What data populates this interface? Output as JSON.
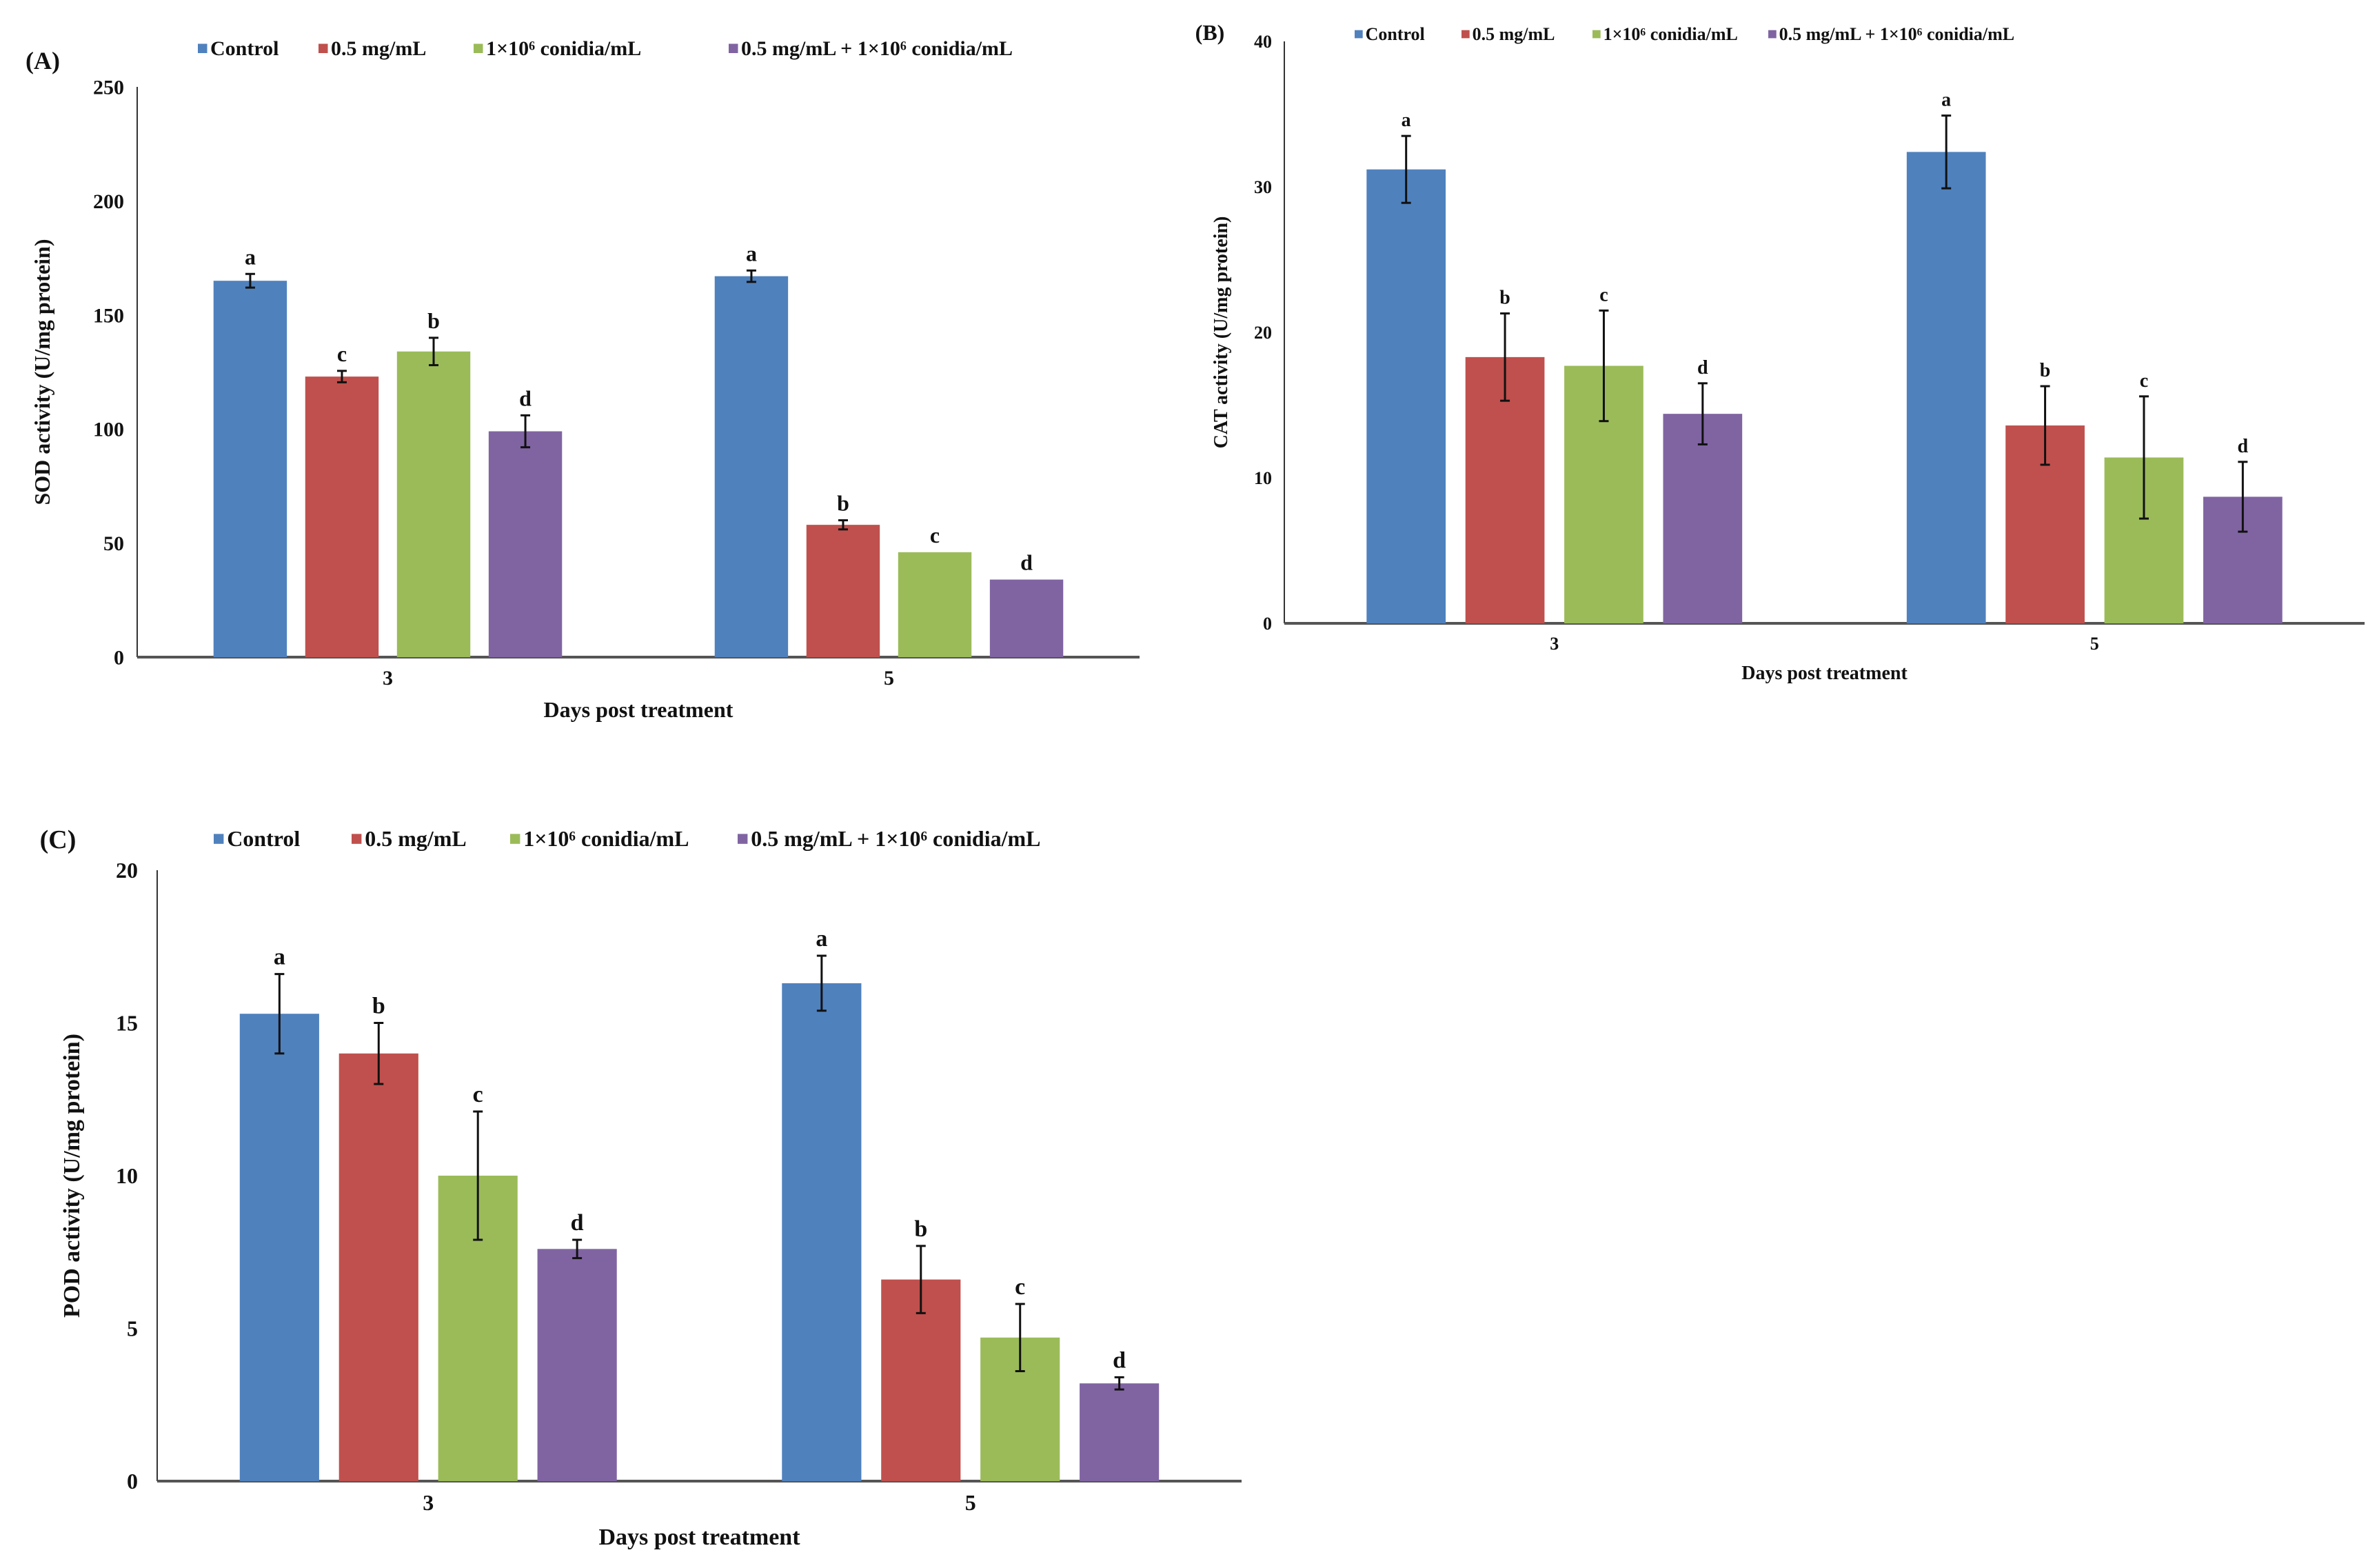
{
  "colors": {
    "Control": "#4f81bd",
    "0.5 mg/mL": "#c0504d",
    "1×10⁶ conidia/mL": "#9bbb59",
    "0.5 mg/mL + 1×10⁶ conidia/mL": "#8064a2"
  },
  "chart_data": [
    {
      "panel": "(A)",
      "type": "bar",
      "xlabel": "Days post treatment",
      "ylabel": "SOD activity (U/mg protein)",
      "ylim": [
        0,
        250
      ],
      "yticks": [
        0,
        50,
        100,
        150,
        200,
        250
      ],
      "categories": [
        "3",
        "5"
      ],
      "legend_position": "top",
      "series": [
        {
          "name": "Control",
          "values": [
            165,
            167
          ],
          "errors": [
            3,
            2.5
          ],
          "letters": [
            "a",
            "a"
          ]
        },
        {
          "name": "0.5 mg/mL",
          "values": [
            123,
            58
          ],
          "errors": [
            2.5,
            2
          ],
          "letters": [
            "c",
            "b"
          ]
        },
        {
          "name": "1×10⁶ conidia/mL",
          "values": [
            134,
            46
          ],
          "errors": [
            6,
            0
          ],
          "letters": [
            "b",
            "c"
          ]
        },
        {
          "name": "0.5 mg/mL + 1×10⁶ conidia/mL",
          "values": [
            99,
            34
          ],
          "errors": [
            7,
            0
          ],
          "letters": [
            "d",
            "d"
          ]
        }
      ]
    },
    {
      "panel": "(B)",
      "type": "bar",
      "xlabel": "Days post treatment",
      "ylabel": "CAT activity (U/mg protein)",
      "ylim": [
        0,
        40
      ],
      "yticks": [
        0,
        10,
        20,
        30,
        40
      ],
      "categories": [
        "3",
        "5"
      ],
      "legend_position": "top",
      "series": [
        {
          "name": "Control",
          "values": [
            31.2,
            32.4
          ],
          "errors": [
            2.3,
            2.5
          ],
          "letters": [
            "a",
            "a"
          ]
        },
        {
          "name": "0.5 mg/mL",
          "values": [
            18.3,
            13.6
          ],
          "errors": [
            3.0,
            2.7
          ],
          "letters": [
            "b",
            "b"
          ]
        },
        {
          "name": "1×10⁶ conidia/mL",
          "values": [
            17.7,
            11.4
          ],
          "errors": [
            3.8,
            4.2
          ],
          "letters": [
            "c",
            "c"
          ]
        },
        {
          "name": "0.5 mg/mL + 1×10⁶ conidia/mL",
          "values": [
            14.4,
            8.7
          ],
          "errors": [
            2.1,
            2.4
          ],
          "letters": [
            "d",
            "d"
          ]
        }
      ]
    },
    {
      "panel": "(C)",
      "type": "bar",
      "xlabel": "Days post treatment",
      "ylabel": "POD activity (U/mg protein)",
      "ylim": [
        0,
        20
      ],
      "yticks": [
        0,
        5,
        10,
        15,
        20
      ],
      "categories": [
        "3",
        "5"
      ],
      "legend_position": "top",
      "series": [
        {
          "name": "Control",
          "values": [
            15.3,
            16.3
          ],
          "errors": [
            1.3,
            0.9
          ],
          "letters": [
            "a",
            "a"
          ]
        },
        {
          "name": "0.5 mg/mL",
          "values": [
            14.0,
            6.6
          ],
          "errors": [
            1.0,
            1.1
          ],
          "letters": [
            "b",
            "b"
          ]
        },
        {
          "name": "1×10⁶ conidia/mL",
          "values": [
            10.0,
            4.7
          ],
          "errors": [
            2.1,
            1.1
          ],
          "letters": [
            "c",
            "c"
          ]
        },
        {
          "name": "0.5 mg/mL + 1×10⁶ conidia/mL",
          "values": [
            7.6,
            3.2
          ],
          "errors": [
            0.3,
            0.2
          ],
          "letters": [
            "d",
            "d"
          ]
        }
      ]
    }
  ]
}
